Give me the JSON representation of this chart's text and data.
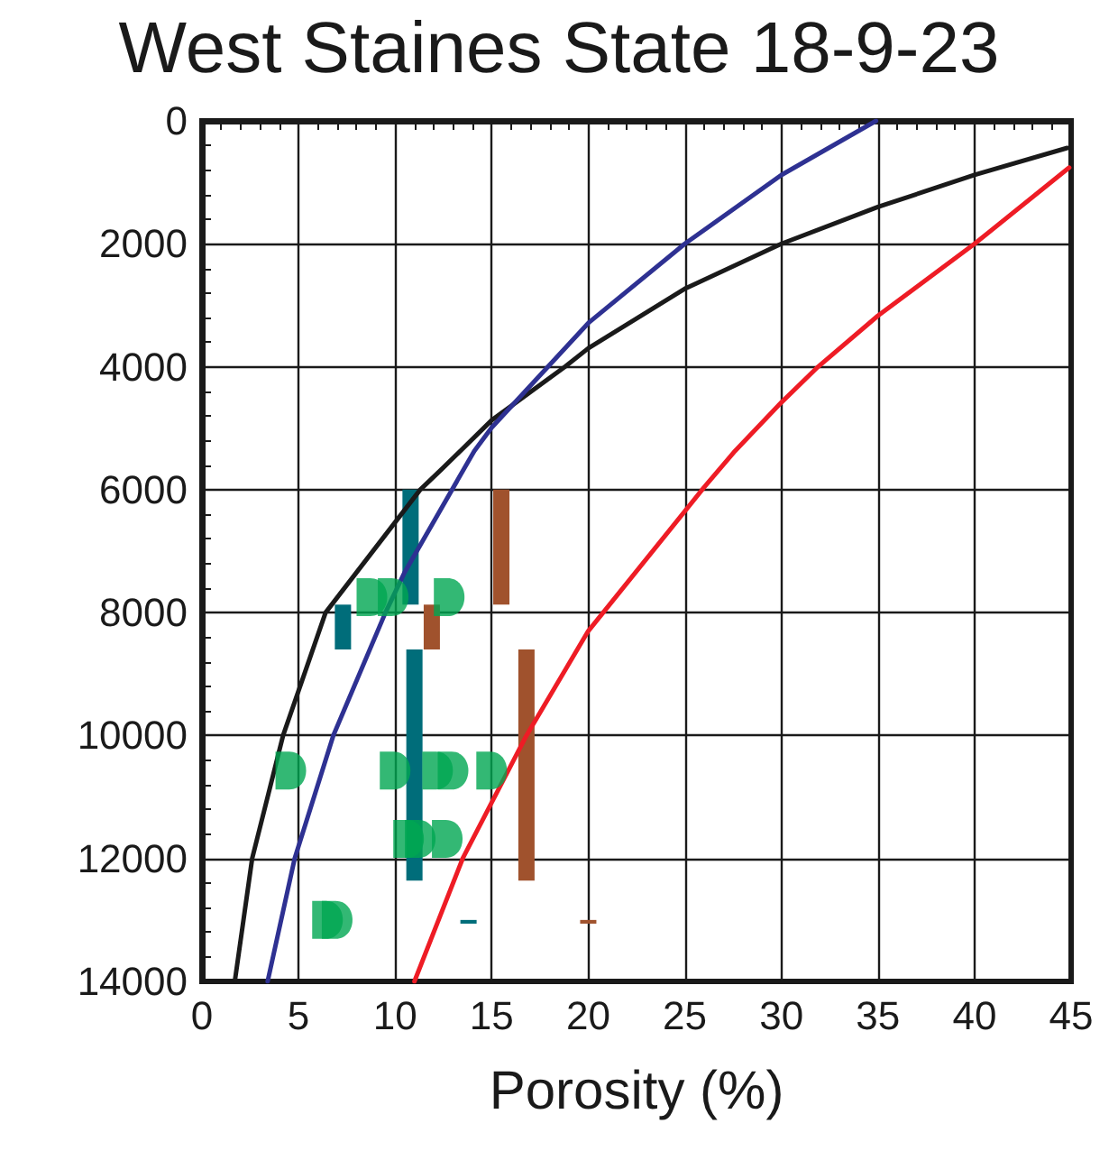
{
  "chart_data": {
    "type": "line",
    "title": "West Staines State 18-9-23",
    "xlabel": "Porosity (%)",
    "xlim": [
      0,
      45
    ],
    "xticks": [
      0,
      5,
      10,
      15,
      20,
      25,
      30,
      35,
      40,
      45
    ],
    "ylim": [
      14000,
      0
    ],
    "yticks": [
      0,
      2000,
      4000,
      6000,
      8000,
      10000,
      12000,
      14000
    ],
    "grid": true,
    "marker": "none",
    "line_style": "solid",
    "series": [
      {
        "color": "#1a1a1a",
        "x": [
          1.7,
          2.6,
          4.2,
          6.4,
          11.3,
          12.4,
          15.0,
          18.8,
          20.0,
          25.0,
          30.0,
          35.0,
          40.0,
          44.8
        ],
        "values": [
          14000,
          12000,
          10000,
          8000,
          6000,
          5670,
          4870,
          4000,
          3700,
          2730,
          2000,
          1400,
          880,
          440
        ]
      },
      {
        "color": "#2e3192",
        "x": [
          3.4,
          4.8,
          6.8,
          9.5,
          10.5,
          14.1,
          15.0,
          20.0,
          25.0,
          30.0,
          34.9
        ],
        "values": [
          14000,
          12000,
          10000,
          8000,
          7340,
          5370,
          4990,
          3290,
          2000,
          880,
          0
        ]
      },
      {
        "color": "#ee1c25",
        "x": [
          11.0,
          13.5,
          16.8,
          20.0,
          26.0,
          27.6,
          30.0,
          31.9,
          35.0,
          40.0,
          44.9
        ],
        "values": [
          14000,
          12000,
          10000,
          8300,
          5960,
          5370,
          4580,
          4000,
          3170,
          2000,
          760
        ]
      },
      {
        "type": "bar",
        "color": "#006d7a",
        "x": [
          7.3,
          10.8,
          11.0,
          13.8
        ],
        "base": [
          7870,
          6000,
          8600,
          13000
        ],
        "values": [
          730,
          1870,
          3760,
          60
        ]
      },
      {
        "type": "bar",
        "color": "#a0522d",
        "x": [
          11.9,
          15.5,
          16.8,
          20.0
        ],
        "base": [
          7870,
          6000,
          8600,
          13000
        ],
        "values": [
          730,
          1870,
          3760,
          60
        ]
      },
      {
        "type": "scatter",
        "color": "#00a651",
        "x": [
          4.6,
          6.5,
          7.0,
          8.8,
          9.9,
          10.0,
          10.7,
          11.3,
          12.2,
          12.7,
          12.8,
          13.0,
          15.0
        ],
        "values": [
          10570,
          13000,
          13000,
          7750,
          7750,
          10570,
          11680,
          11680,
          10570,
          11680,
          7750,
          10570,
          10570
        ]
      }
    ]
  }
}
